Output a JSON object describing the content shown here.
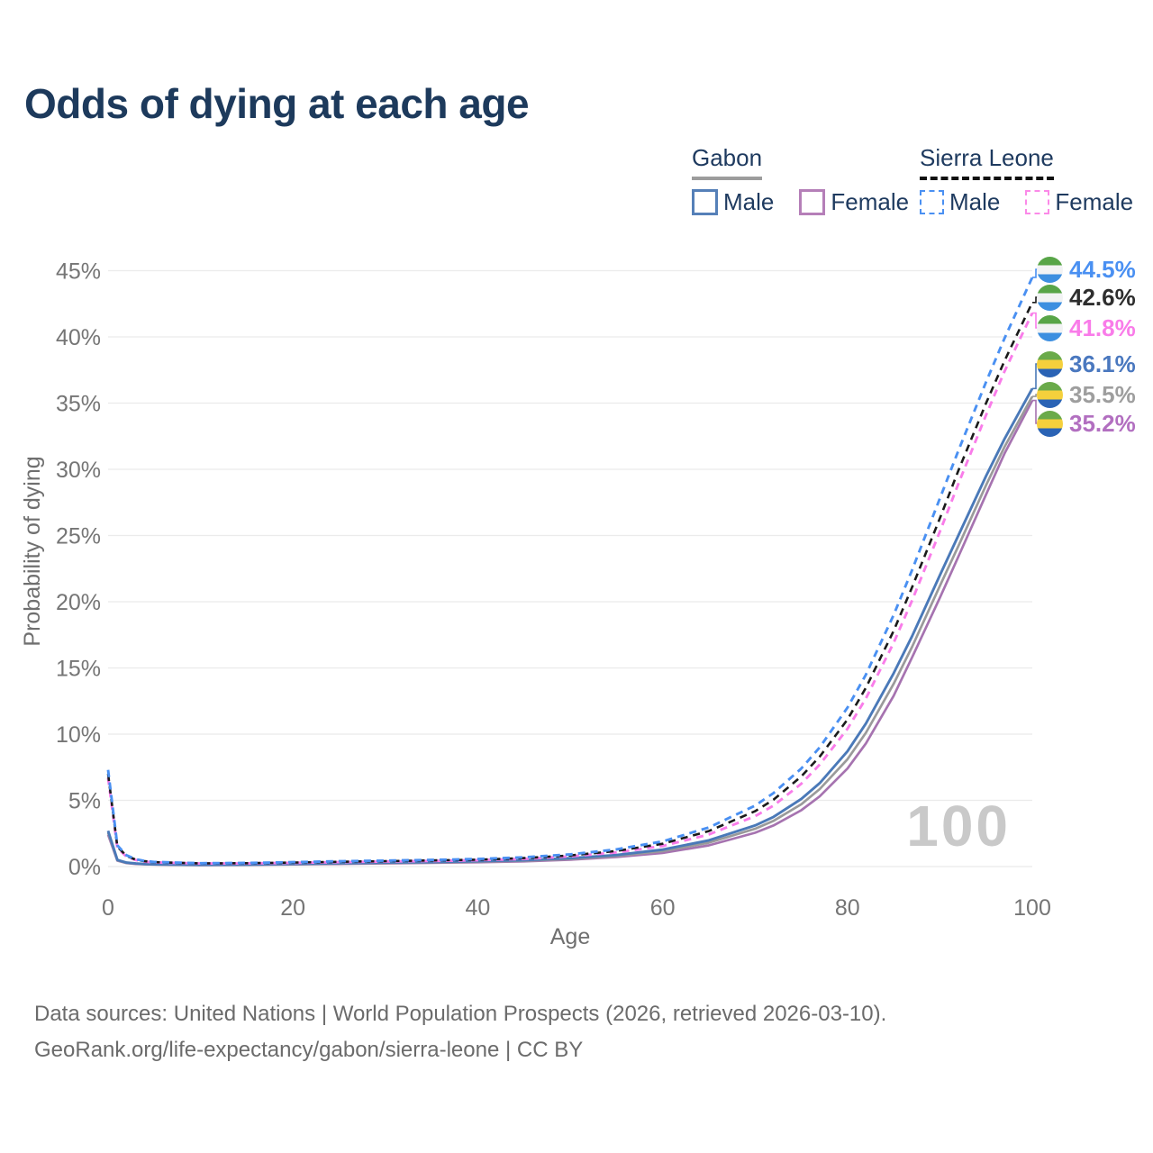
{
  "title": "Odds of dying at each age",
  "watermark": "100",
  "legend": {
    "groups": [
      {
        "name": "Gabon",
        "line_style": "solid",
        "items": [
          {
            "label": "Male"
          },
          {
            "label": "Female"
          }
        ]
      },
      {
        "name": "Sierra Leone",
        "line_style": "dashed",
        "items": [
          {
            "label": "Male"
          },
          {
            "label": "Female"
          }
        ]
      }
    ]
  },
  "footer": {
    "line1": "Data sources: United Nations | World Population Prospects (2026, retrieved 2026-03-10).",
    "line2": "GeoRank.org/life-expectancy/gabon/sierra-leone | CC BY"
  },
  "colors": {
    "title": "#1d3a5c",
    "legend_text": "#1e3a5f",
    "gabon_underline": "#9c9c9c",
    "sierra_leone_underline": "#111111",
    "gabon_male": "#5580b8",
    "gabon_female": "#b57fb8",
    "sierra_leone_male": "#4a90f2",
    "sierra_leone_female": "#fb8ae8",
    "gridline": "#ebebeb",
    "tick_text": "#757575",
    "watermark_text": "#c9c9c9"
  },
  "chart_data": {
    "type": "line",
    "title": "Odds of dying at each age",
    "xlabel": "Age",
    "ylabel": "Probability of dying",
    "xlim": [
      0,
      100
    ],
    "ylim": [
      0,
      45
    ],
    "xticks": [
      0,
      20,
      40,
      60,
      80,
      100
    ],
    "yticks": [
      0,
      5,
      10,
      15,
      20,
      25,
      30,
      35,
      40,
      45
    ],
    "ytick_suffix": "%",
    "grid": "horizontal",
    "legend_position": "top-right",
    "x": [
      0,
      1,
      2,
      3,
      4,
      5,
      10,
      15,
      20,
      25,
      30,
      35,
      40,
      45,
      50,
      55,
      60,
      65,
      70,
      72,
      75,
      77,
      80,
      82,
      85,
      87,
      90,
      92,
      95,
      97,
      100
    ],
    "series": [
      {
        "id": "gabon-female",
        "name": "Gabon Female",
        "country": "Gabon",
        "sex": "Female",
        "color": "#a673b0",
        "dash": "solid",
        "width": 2.7,
        "values": [
          2.4,
          0.44,
          0.26,
          0.2,
          0.17,
          0.15,
          0.11,
          0.12,
          0.16,
          0.2,
          0.24,
          0.28,
          0.32,
          0.39,
          0.52,
          0.72,
          1.03,
          1.6,
          2.55,
          3.1,
          4.25,
          5.3,
          7.4,
          9.3,
          12.9,
          15.8,
          20.3,
          23.4,
          28.1,
          31.2,
          35.2
        ]
      },
      {
        "id": "gabon-both",
        "name": "Gabon Both sexes",
        "country": "Gabon",
        "sex": "Both",
        "color": "#9a9a9a",
        "dash": "solid",
        "width": 2.7,
        "values": [
          2.55,
          0.47,
          0.28,
          0.22,
          0.18,
          0.16,
          0.12,
          0.14,
          0.18,
          0.23,
          0.27,
          0.31,
          0.36,
          0.44,
          0.58,
          0.8,
          1.16,
          1.8,
          2.85,
          3.45,
          4.7,
          5.85,
          8.1,
          10.1,
          13.8,
          16.6,
          21.2,
          24.2,
          28.8,
          31.7,
          35.5
        ]
      },
      {
        "id": "gabon-male",
        "name": "Gabon Male",
        "country": "Gabon",
        "sex": "Male",
        "color": "#4a79b8",
        "dash": "solid",
        "width": 2.9,
        "values": [
          2.7,
          0.5,
          0.3,
          0.23,
          0.19,
          0.17,
          0.13,
          0.15,
          0.2,
          0.25,
          0.3,
          0.34,
          0.4,
          0.48,
          0.63,
          0.87,
          1.28,
          1.98,
          3.1,
          3.75,
          5.1,
          6.3,
          8.7,
          10.8,
          14.6,
          17.4,
          22.0,
          25.0,
          29.5,
          32.3,
          36.1
        ]
      },
      {
        "id": "sierra-leone-female",
        "name": "Sierra Leone Female",
        "country": "Sierra Leone",
        "sex": "Female",
        "color": "#f97ce9",
        "dash": "dashed",
        "width": 2.9,
        "values": [
          6.7,
          1.4,
          0.74,
          0.49,
          0.37,
          0.31,
          0.23,
          0.24,
          0.28,
          0.33,
          0.38,
          0.42,
          0.48,
          0.58,
          0.77,
          1.07,
          1.55,
          2.42,
          3.8,
          4.6,
          6.25,
          7.7,
          10.4,
          12.7,
          16.9,
          20.1,
          25.3,
          28.9,
          34.1,
          37.4,
          41.8
        ]
      },
      {
        "id": "sierra-leone-both",
        "name": "Sierra Leone Both sexes",
        "country": "Sierra Leone",
        "sex": "Both",
        "color": "#1a1a1a",
        "dash": "dashed",
        "width": 2.6,
        "values": [
          7.0,
          1.5,
          0.8,
          0.52,
          0.4,
          0.33,
          0.24,
          0.25,
          0.3,
          0.36,
          0.41,
          0.46,
          0.52,
          0.64,
          0.84,
          1.18,
          1.72,
          2.68,
          4.18,
          5.05,
          6.8,
          8.3,
          11.1,
          13.5,
          17.8,
          21.1,
          26.3,
          29.9,
          35.0,
          38.2,
          42.6
        ]
      },
      {
        "id": "sierra-leone-male",
        "name": "Sierra Leone Male",
        "country": "Sierra Leone",
        "sex": "Male",
        "color": "#4a90f2",
        "dash": "dashed",
        "width": 2.9,
        "values": [
          7.3,
          1.6,
          0.85,
          0.55,
          0.42,
          0.35,
          0.25,
          0.27,
          0.33,
          0.4,
          0.45,
          0.5,
          0.57,
          0.7,
          0.92,
          1.3,
          1.9,
          2.95,
          4.6,
          5.55,
          7.4,
          9.0,
          12.0,
          14.5,
          19.0,
          22.4,
          27.8,
          31.4,
          36.6,
          39.9,
          44.5
        ]
      }
    ],
    "end_labels": [
      {
        "value": "44.5%",
        "series_id": "sierra-leone-male",
        "color": "#4a90f2",
        "flag": "sierra-leone"
      },
      {
        "value": "42.6%",
        "series_id": "sierra-leone-both",
        "color": "#2e2e2e",
        "flag": "sierra-leone"
      },
      {
        "value": "41.8%",
        "series_id": "sierra-leone-female",
        "color": "#f97ce9",
        "flag": "sierra-leone"
      },
      {
        "value": "36.1%",
        "series_id": "gabon-male",
        "color": "#4a78bf",
        "flag": "gabon"
      },
      {
        "value": "35.5%",
        "series_id": "gabon-both",
        "color": "#9e9e9e",
        "flag": "gabon"
      },
      {
        "value": "35.2%",
        "series_id": "gabon-female",
        "color": "#b26fc0",
        "flag": "gabon"
      }
    ],
    "flags": {
      "sierra-leone": [
        "#58a548",
        "#f2f3f4",
        "#3d8fe0"
      ],
      "gabon": [
        "#6aaa4a",
        "#f5d03c",
        "#2a63b5"
      ]
    }
  }
}
